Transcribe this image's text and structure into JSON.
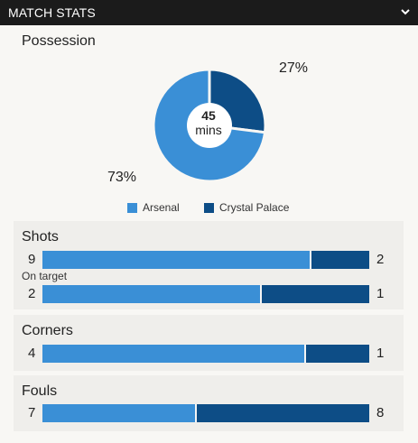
{
  "header": {
    "title": "MATCH STATS",
    "chevron_icon": "chevron-down-icon"
  },
  "colors": {
    "home": "#3a8fd6",
    "away": "#0d4d86"
  },
  "possession": {
    "title": "Possession",
    "home_pct": 73,
    "away_pct": 27,
    "home_label": "73%",
    "away_label": "27%",
    "minute_value": "45",
    "minute_unit": "mins"
  },
  "legend": {
    "home": "Arsenal",
    "away": "Crystal Palace"
  },
  "shots": {
    "title": "Shots",
    "total": {
      "home": "9",
      "away": "2",
      "home_value": 9,
      "away_value": 2
    },
    "on_target_label": "On target",
    "on_target": {
      "home": "2",
      "away": "1",
      "home_value": 2,
      "away_value": 1
    }
  },
  "corners": {
    "title": "Corners",
    "home": "4",
    "away": "1",
    "home_value": 4,
    "away_value": 1
  },
  "fouls": {
    "title": "Fouls",
    "home": "7",
    "away": "8",
    "home_value": 7,
    "away_value": 8
  }
}
